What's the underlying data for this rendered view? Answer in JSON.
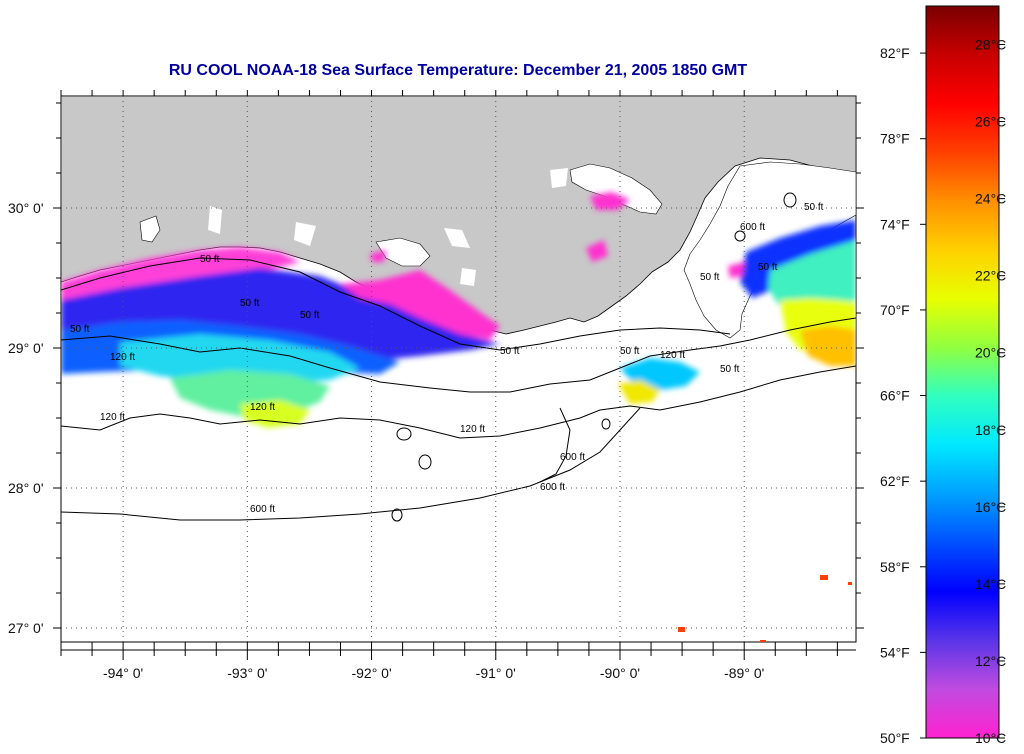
{
  "title": "RU COOL  NOAA-18  Sea Surface Temperature:  December 21, 2005 1850 GMT",
  "title_color": "#0000a0",
  "map": {
    "land_color": "#c8c8c8",
    "ocean_no_data_color": "#ffffff",
    "lat_labels": [
      "30° 0'",
      "29° 0'",
      "28° 0'",
      "27° 0'"
    ],
    "lon_labels": [
      "-94° 0'",
      "-93° 0'",
      "-92° 0'",
      "-91° 0'",
      "-90° 0'",
      "-89° 0'"
    ],
    "lat_range": [
      26.9,
      30.8
    ],
    "lon_range": [
      -94.5,
      -88.1
    ],
    "contour_labels": [
      "50 ft",
      "50 ft",
      "50 ft",
      "50 ft",
      "50 ft",
      "50 ft",
      "120 ft",
      "120 ft",
      "120 ft",
      "120 ft",
      "120 ft",
      "600 ft",
      "600 ft",
      "600 ft",
      "600 ft",
      "50 ft",
      "50 ft",
      "50 ft",
      "50 ft"
    ]
  },
  "colorbar": {
    "fahrenheit_labels": [
      "82°F",
      "78°F",
      "74°F",
      "70°F",
      "66°F",
      "62°F",
      "58°F",
      "54°F",
      "50°F"
    ],
    "celsius_labels": [
      "28°C",
      "26°C",
      "24°C",
      "22°C",
      "20°C",
      "18°C",
      "16°C",
      "14°C",
      "12°C",
      "10°C"
    ],
    "range_c": [
      10,
      29
    ],
    "stops": [
      "#ff22d0",
      "#c04be0",
      "#5a35e8",
      "#0000ff",
      "#0050ff",
      "#00a0ff",
      "#00e8ff",
      "#30ffc0",
      "#90ff40",
      "#e8ff00",
      "#ffd000",
      "#ff9000",
      "#ff4000",
      "#ff0000",
      "#c80000",
      "#7a0000"
    ]
  }
}
